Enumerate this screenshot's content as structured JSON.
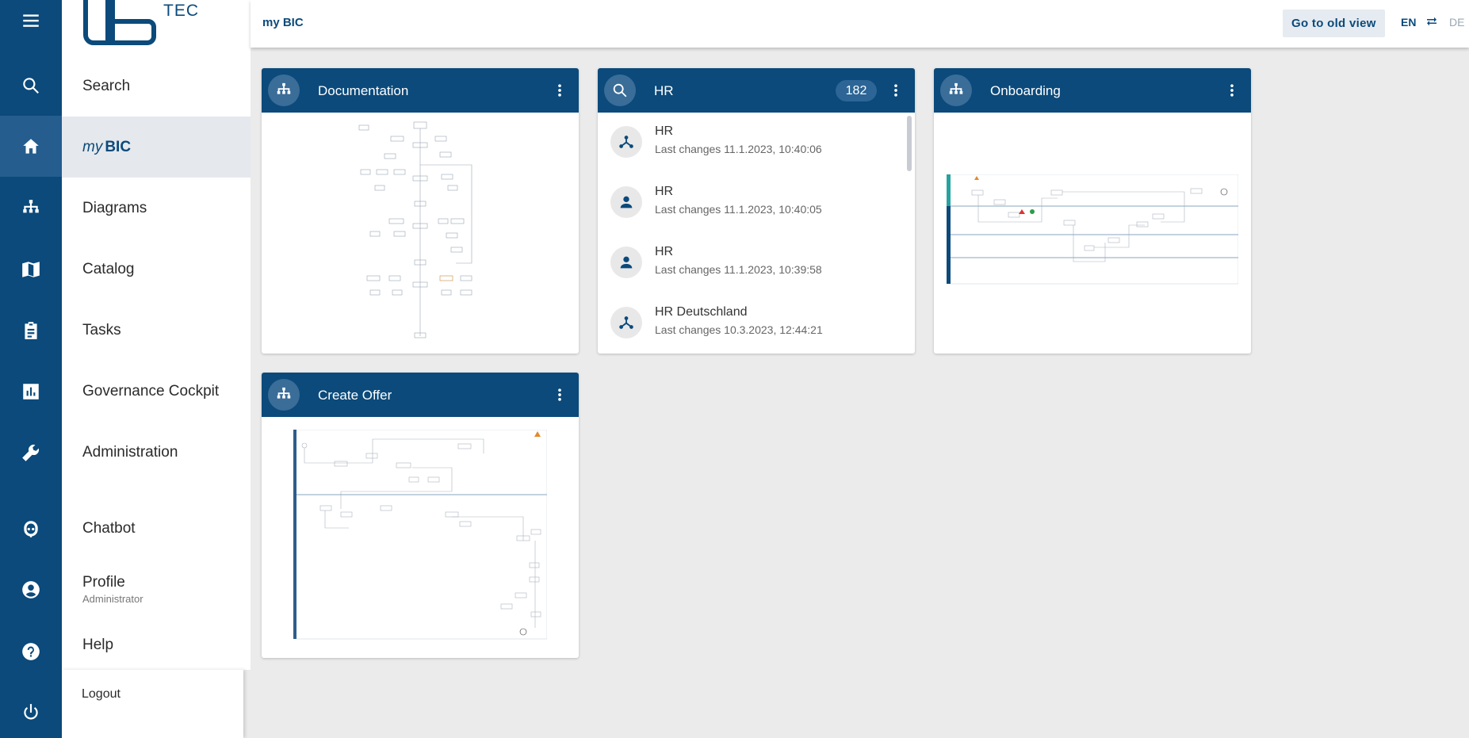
{
  "rail": {
    "icons": [
      "menu-icon",
      "search-icon",
      "home-icon",
      "diagram-icon",
      "catalog-icon",
      "tasks-icon",
      "governance-icon",
      "wrench-icon",
      "chatbot-icon",
      "profile-icon",
      "help-icon",
      "power-icon"
    ]
  },
  "logo": {
    "text": "TEC"
  },
  "nav": {
    "search": "Search",
    "mybic_prefix": "my",
    "mybic_name": "BIC",
    "diagrams": "Diagrams",
    "catalog": "Catalog",
    "tasks": "Tasks",
    "governance": "Governance Cockpit",
    "administration": "Administration",
    "chatbot": "Chatbot",
    "profile": "Profile",
    "profile_role": "Administrator",
    "help": "Help",
    "logout": "Logout"
  },
  "header": {
    "breadcrumb": "my BIC",
    "old_view_button": "Go to old view",
    "lang_active": "EN",
    "lang_other": "DE"
  },
  "cards": {
    "documentation": {
      "title": "Documentation"
    },
    "hr": {
      "title": "HR",
      "count": "182",
      "items": [
        {
          "title": "HR",
          "subtitle": "Last changes 11.1.2023, 10:40:06",
          "icon": "share-icon"
        },
        {
          "title": "HR",
          "subtitle": "Last changes 11.1.2023, 10:40:05",
          "icon": "person-icon"
        },
        {
          "title": "HR",
          "subtitle": "Last changes 11.1.2023, 10:39:58",
          "icon": "person-icon"
        },
        {
          "title": "HR Deutschland",
          "subtitle": "Last changes 10.3.2023, 12:44:21",
          "icon": "share-icon"
        }
      ]
    },
    "onboarding": {
      "title": "Onboarding"
    },
    "create_offer": {
      "title": "Create Offer"
    }
  },
  "colors": {
    "primary": "#0b4a7b",
    "rail_active": "#245d8e",
    "background": "#ebebeb"
  }
}
